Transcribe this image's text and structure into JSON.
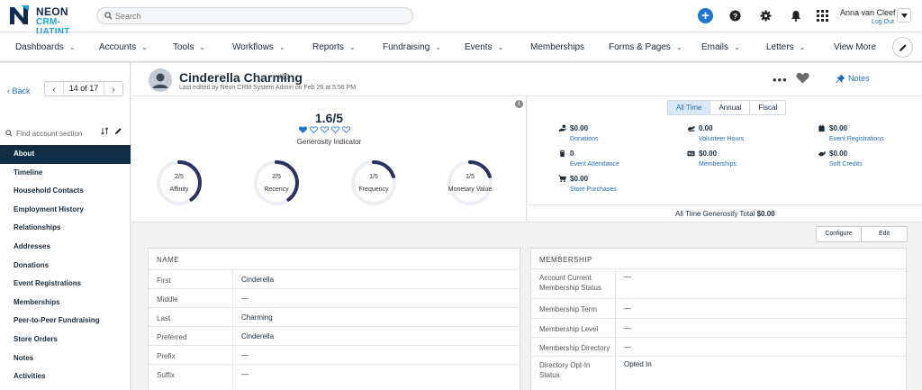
{
  "app": {
    "logo_line1": "NEON",
    "logo_line2": "CRM- UATINT",
    "search_placeholder": "Search",
    "user_name": "Anna van Cleef",
    "logout": "Log Out",
    "colors": {
      "brand_navy": "#0f2d44",
      "accent_blue": "#1f6fb5",
      "primary_button": "#1f77d0"
    }
  },
  "nav": [
    {
      "label": "Dashboards",
      "dropdown": true
    },
    {
      "label": "Accounts",
      "dropdown": true
    },
    {
      "label": "Tools",
      "dropdown": true
    },
    {
      "label": "Workflows",
      "dropdown": true
    },
    {
      "label": "Reports",
      "dropdown": true
    },
    {
      "label": "Fundraising",
      "dropdown": true
    },
    {
      "label": "Events",
      "dropdown": true
    },
    {
      "label": "Memberships",
      "dropdown": false
    },
    {
      "label": "Forms & Pages",
      "dropdown": true
    },
    {
      "label": "Emails",
      "dropdown": true
    },
    {
      "label": "Letters",
      "dropdown": true
    },
    {
      "label": "View More",
      "dropdown": false
    }
  ],
  "sidebar": {
    "back": "Back",
    "pager": "14 of 17",
    "find_placeholder": "Find account section",
    "items": [
      "About",
      "Timeline",
      "Household Contacts",
      "Employment History",
      "Relationships",
      "Addresses",
      "Donations",
      "Event Registrations",
      "Memberships",
      "Peer-to-Peer Fundraising",
      "Store Orders",
      "Notes",
      "Activities"
    ],
    "active": "About"
  },
  "account": {
    "name": "Cinderella Charming",
    "id": "#13",
    "edited": "Last edited by Neon CRM System Admin on Feb 29 at 5:56 PM",
    "notes": "Notes"
  },
  "generosity": {
    "score": "1.6/5",
    "label": "Generosity Indicator",
    "hearts_filled": 1,
    "hearts_total": 5,
    "gauges": [
      {
        "value_text": "2/5",
        "value": 2,
        "label": "Affinity"
      },
      {
        "value_text": "2/5",
        "value": 2,
        "label": "Recency"
      },
      {
        "value_text": "1/5",
        "value": 1,
        "label": "Frequency"
      },
      {
        "value_text": "1/5",
        "value": 1,
        "label": "Monetary Value"
      }
    ]
  },
  "stats": {
    "tabs": [
      "All Time",
      "Annual",
      "Fiscal"
    ],
    "active_tab": "All Time",
    "items": [
      {
        "value": "$0.00",
        "label": "Donations",
        "icon": "donation-hand-icon"
      },
      {
        "value": "0.00",
        "label": "Volunteer Hours",
        "icon": "volunteer-icon"
      },
      {
        "value": "$0.00",
        "label": "Event Registrations",
        "icon": "calendar-icon"
      },
      {
        "value": "0",
        "label": "Event Attendance",
        "icon": "attendance-icon"
      },
      {
        "value": "$0.00",
        "label": "Memberships",
        "icon": "membership-card-icon"
      },
      {
        "value": "$0.00",
        "label": "Soft Credits",
        "icon": "soft-credit-icon"
      },
      {
        "value": "$0.00",
        "label": "Store Purchases",
        "icon": "cart-icon"
      }
    ],
    "total_label": "All Time Generosity Total",
    "total_value": "$0.00"
  },
  "actions": {
    "configure": "Configure",
    "edit": "Edit"
  },
  "name_card": {
    "title": "NAME",
    "rows": [
      {
        "label": "First",
        "value": "Cinderella"
      },
      {
        "label": "Middle",
        "value": "—"
      },
      {
        "label": "Last",
        "value": "Charming"
      },
      {
        "label": "Preferred",
        "value": "Cinderella"
      },
      {
        "label": "Prefix",
        "value": "—"
      },
      {
        "label": "Suffix",
        "value": "—"
      }
    ]
  },
  "membership_card": {
    "title": "MEMBERSHIP",
    "rows": [
      {
        "label": "Account Current Membership Status",
        "value": "—"
      },
      {
        "label": "Membership Term",
        "value": "—"
      },
      {
        "label": "Membership Level",
        "value": "—"
      },
      {
        "label": "Membership Directory",
        "value": "—"
      },
      {
        "label": "Directory Opt-In Status",
        "value": "Opted In"
      }
    ]
  }
}
